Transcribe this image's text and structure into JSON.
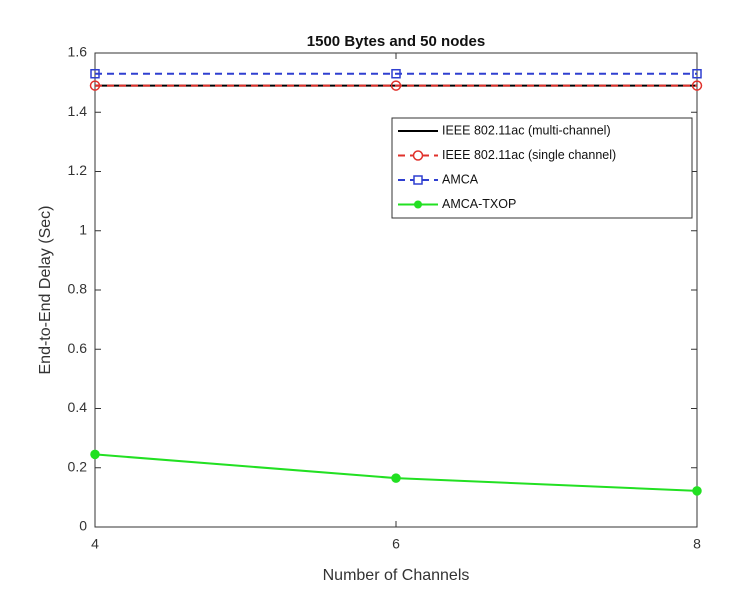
{
  "chart_data": {
    "type": "line",
    "title": "1500 Bytes and 50 nodes",
    "xlabel": "Number of Channels",
    "ylabel": "End-to-End Delay (Sec)",
    "x": [
      4,
      6,
      8
    ],
    "series": [
      {
        "name": "IEEE 802.11ac (multi-channel)",
        "color": "#000000",
        "linestyle": "solid",
        "marker": "none",
        "values": [
          1.49,
          1.49,
          1.49
        ]
      },
      {
        "name": "IEEE 802.11ac (single channel)",
        "color": "#e0312b",
        "linestyle": "dashed",
        "marker": "circle",
        "values": [
          1.49,
          1.49,
          1.49
        ]
      },
      {
        "name": "AMCA",
        "color": "#2f3fd0",
        "linestyle": "dashed",
        "marker": "square",
        "values": [
          1.53,
          1.53,
          1.53
        ]
      },
      {
        "name": "AMCA-TXOP",
        "color": "#22e022",
        "linestyle": "solid",
        "marker": "dot",
        "values": [
          0.245,
          0.165,
          0.122
        ]
      }
    ],
    "xlim": [
      4,
      8
    ],
    "xticks": [
      4,
      6,
      8
    ],
    "ylim": [
      0,
      1.6
    ],
    "yticks": [
      0,
      0.2,
      0.4,
      0.6,
      0.8,
      1,
      1.2,
      1.4,
      1.6
    ],
    "grid": false,
    "legend": "northeast"
  }
}
